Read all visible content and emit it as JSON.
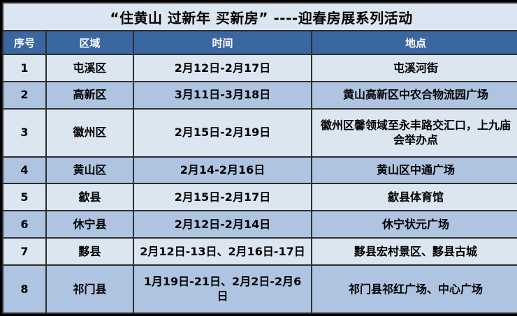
{
  "table": {
    "title": "“住黄山 过新年 买新房” ----迎春房展系列活动",
    "columns": [
      "序号",
      "区域",
      "时间",
      "地点"
    ],
    "rows": [
      {
        "no": "1",
        "region": "屯溪区",
        "time": "2月12日-2月17日",
        "place": "屯溪河街"
      },
      {
        "no": "2",
        "region": "高新区",
        "time": "3月11日-3月18日",
        "place": "黄山高新区中农合物流园广场"
      },
      {
        "no": "3",
        "region": "徽州区",
        "time": "2月15日-2月19日",
        "place": "徽州区馨领域至永丰路交汇口，上九庙会举办点"
      },
      {
        "no": "4",
        "region": "黄山区",
        "time": "2月14-2月16日",
        "place": "黄山区中通广场"
      },
      {
        "no": "5",
        "region": "歙县",
        "time": "2月15日-2月17日",
        "place": "歙县体育馆"
      },
      {
        "no": "6",
        "region": "休宁县",
        "time": "2月12日-2月14日",
        "place": "休宁状元广场"
      },
      {
        "no": "7",
        "region": "黟县",
        "time": "2月12日-13日、2月16日-17日",
        "place": "黟县宏村景区、黟县古城"
      },
      {
        "no": "8",
        "region": "祁门县",
        "time": "1月19日-21日、2月2日-2月6日",
        "place": "祁门县祁红广场、中心广场"
      }
    ],
    "colors": {
      "title_bg": "#dce6f1",
      "header_bg": "#3a67a1",
      "header_text": "#ffffff",
      "row_light_bg": "#dce6f1",
      "row_dark_bg": "#afc4e1",
      "border": "#2e2e2e",
      "text": "#000000"
    }
  }
}
